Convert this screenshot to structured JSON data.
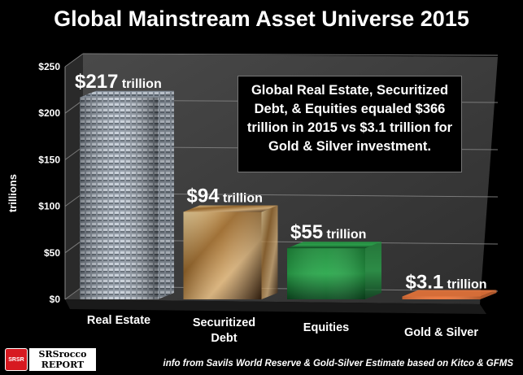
{
  "chart_data": {
    "type": "bar",
    "title": "Global Mainstream Asset Universe 2015",
    "ylabel": "trillions",
    "ylim": [
      0,
      250
    ],
    "yticks": [
      "$0",
      "$50",
      "$100",
      "$150",
      "$200",
      "$250"
    ],
    "ytick_values": [
      0,
      50,
      100,
      150,
      200,
      250
    ],
    "categories": [
      "Real Estate",
      "Securitized Debt",
      "Equities",
      "Gold & Silver"
    ],
    "values": [
      217,
      94,
      55,
      3.1
    ],
    "value_labels": [
      "$217",
      "$94",
      "$55",
      "$3.1"
    ],
    "value_unit": "trillion",
    "annotation": "Global Real Estate, Securitized Debt, & Equities equaled $366 trillion in 2015 vs $3.1 trillion for Gold & Silver investment.",
    "grid": true,
    "colors": {
      "background": "#000000",
      "plot_wall": "#3c3c3c",
      "gridline": "#7a7a7a",
      "gold_silver_bar": "#e8743a"
    }
  },
  "footer": {
    "source": "info from Savils World Reserve & Gold-Silver Estimate based on Kitco & GFMS",
    "logo_line1": "SRSrocco",
    "logo_line2": "REPORT",
    "logo_badge": "SRSR"
  }
}
